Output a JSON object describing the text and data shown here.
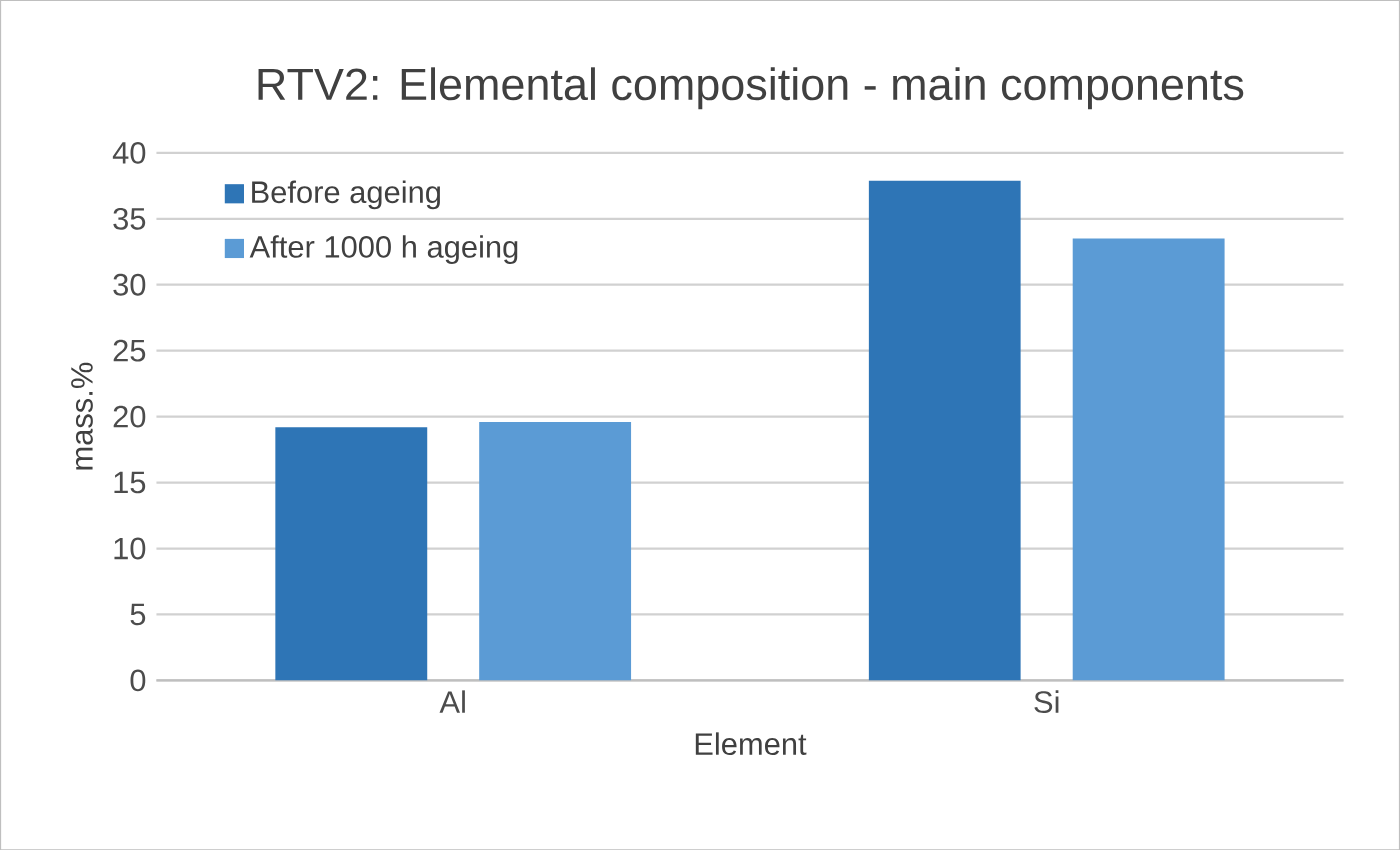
{
  "chart_data": {
    "type": "bar",
    "title": "RTV2: Elemental composition - main components",
    "xlabel": "Element",
    "ylabel": "mass.%",
    "categories": [
      "Al",
      "Si"
    ],
    "series": [
      {
        "name": "Before ageing",
        "color": "#2e75b6",
        "values": [
          19.2,
          37.9
        ]
      },
      {
        "name": "After 1000 h ageing",
        "color": "#5b9bd5",
        "values": [
          19.6,
          33.5
        ]
      }
    ],
    "ylim": [
      0,
      40
    ],
    "yticks": [
      0,
      5,
      10,
      15,
      20,
      25,
      30,
      35,
      40
    ],
    "grid": "y",
    "legend": "top left"
  }
}
